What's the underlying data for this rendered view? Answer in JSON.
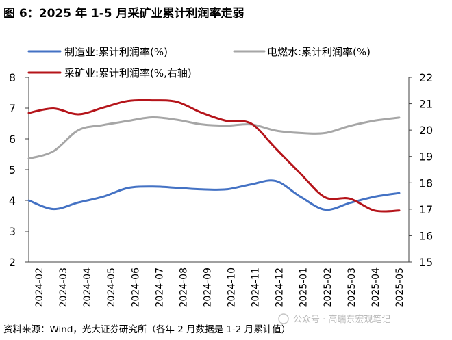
{
  "source": "资料来源：Wind，光大证券研究所（各年 2 月数据是 1-2 月累计值）",
  "watermark": "公众号 · 高瑞东宏观笔记",
  "chart_data": {
    "type": "line",
    "title": "图 6：2025 年 1-5 月采矿业累计利润率走弱",
    "categories": [
      "2024-02",
      "2024-03",
      "2024-04",
      "2024-05",
      "2024-06",
      "2024-07",
      "2024-08",
      "2024-09",
      "2024-10",
      "2024-11",
      "2024-12",
      "2025-01",
      "2025-02",
      "2025-03",
      "2025-04",
      "2025-05"
    ],
    "series": [
      {
        "name": "制造业:累计利润率(%)",
        "axis": "left",
        "color": "#4472C4",
        "values": [
          4.0,
          3.72,
          3.93,
          4.12,
          4.4,
          4.45,
          4.41,
          4.36,
          4.36,
          4.52,
          4.63,
          4.12,
          3.7,
          3.92,
          4.12,
          4.24
        ]
      },
      {
        "name": "电燃水:累计利润率(%)",
        "axis": "left",
        "color": "#A6A6A6",
        "values": [
          5.36,
          5.6,
          6.28,
          6.45,
          6.58,
          6.7,
          6.62,
          6.47,
          6.43,
          6.47,
          6.27,
          6.19,
          6.19,
          6.42,
          6.59,
          6.69
        ]
      },
      {
        "name": "采矿业:累计利润率(%,右轴)",
        "axis": "right",
        "color": "#B5141A",
        "values": [
          20.65,
          20.82,
          20.6,
          20.85,
          21.1,
          21.13,
          21.07,
          20.66,
          20.35,
          20.25,
          19.3,
          18.35,
          17.45,
          17.4,
          16.95,
          16.95
        ]
      }
    ],
    "y_left": {
      "min": 2,
      "max": 8,
      "ticks": [
        2,
        3,
        4,
        5,
        6,
        7,
        8
      ]
    },
    "y_right": {
      "min": 15,
      "max": 22,
      "ticks": [
        15,
        16,
        17,
        18,
        19,
        20,
        21,
        22
      ]
    },
    "grid": false,
    "legend": "top"
  }
}
